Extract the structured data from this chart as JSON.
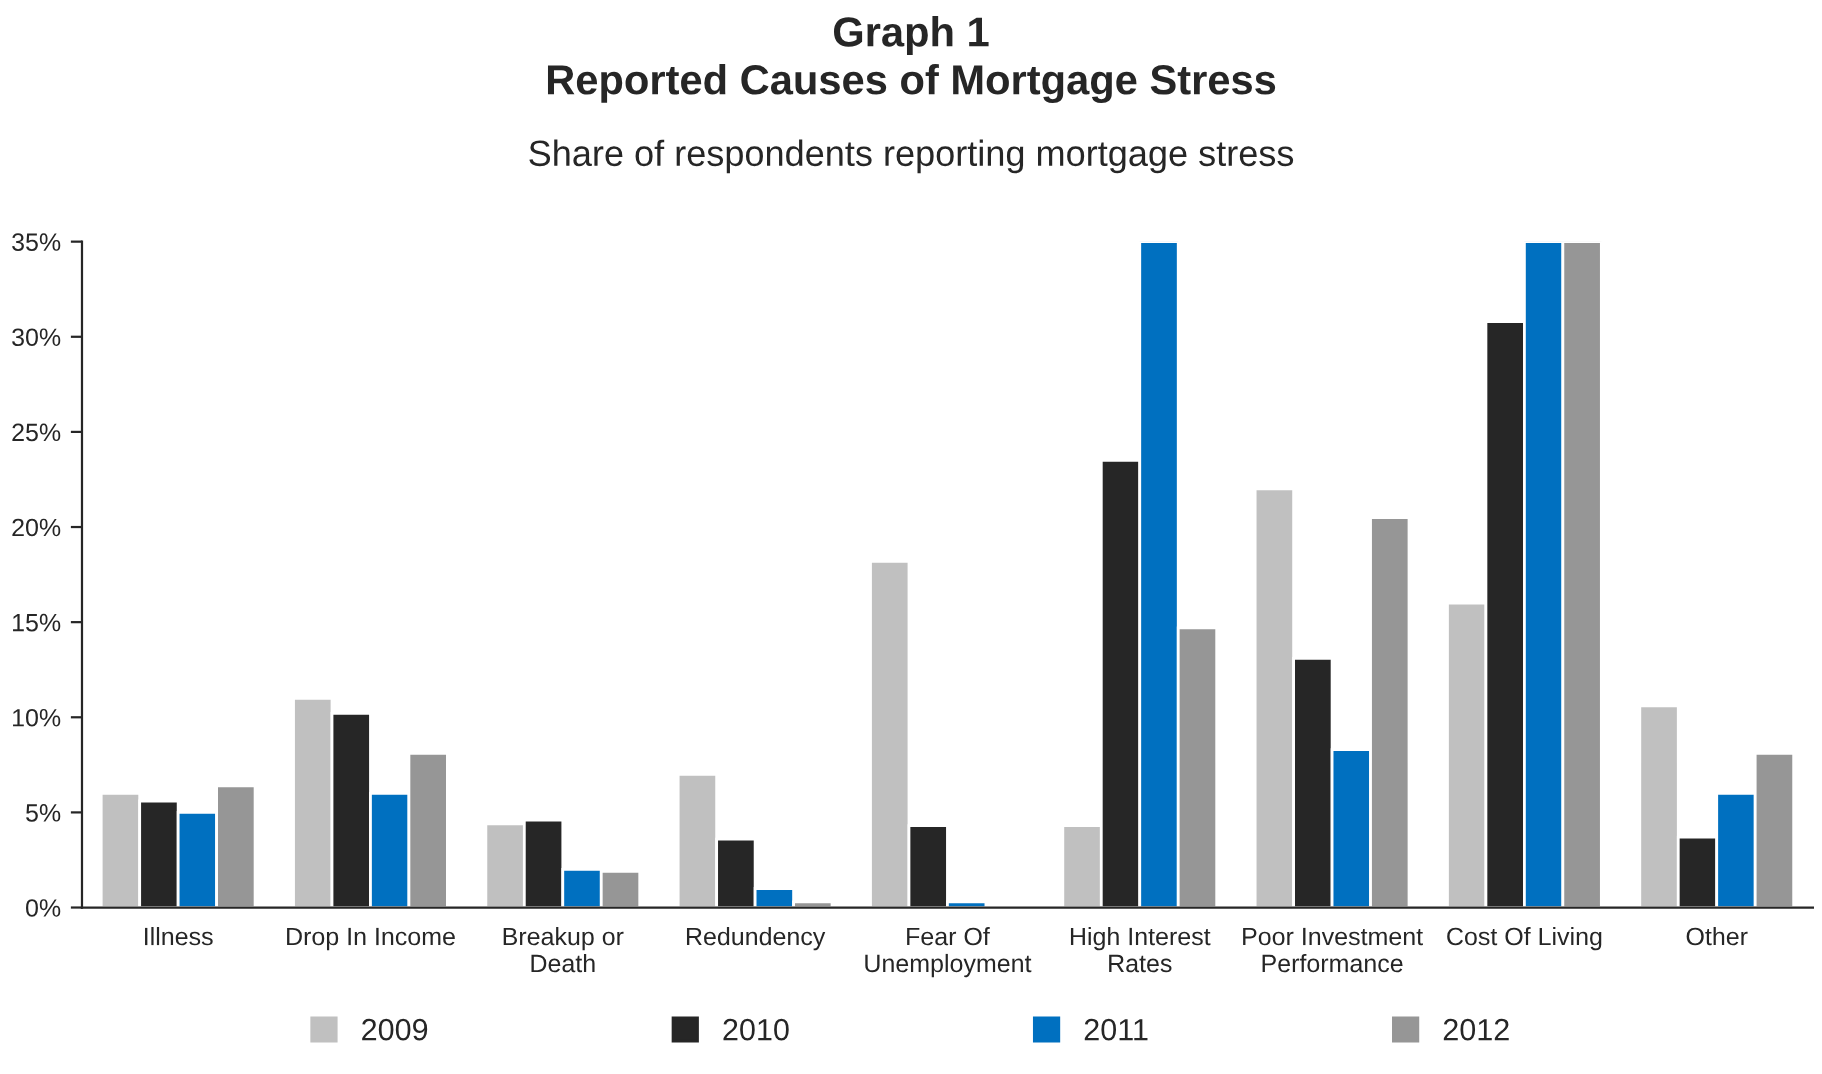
{
  "chart_data": {
    "type": "bar",
    "title": "Graph 1\nReported Causes of Mortgage Stress",
    "subtitle": "Share of respondents reporting mortgage stress",
    "categories": [
      "Illness",
      "Drop In Income",
      "Breakup or\nDeath",
      "Redundency",
      "Fear Of\nUnemployment",
      "High Interest\nRates",
      "Poor Investment\nPerformance",
      "Cost Of Living",
      "Other"
    ],
    "series": [
      {
        "name": "2009",
        "color": "#c0c0c0",
        "values": [
          6.0,
          11.0,
          4.4,
          7.0,
          18.2,
          4.3,
          22.0,
          16.0,
          10.6
        ]
      },
      {
        "name": "2010",
        "color": "#262626",
        "values": [
          5.6,
          10.2,
          4.6,
          3.6,
          4.3,
          23.5,
          13.1,
          30.8,
          3.7
        ]
      },
      {
        "name": "2011",
        "color": "#0070c0",
        "values": [
          5.0,
          6.0,
          2.0,
          1.0,
          0.3,
          35,
          8.3,
          35,
          6.0
        ]
      },
      {
        "name": "2012",
        "color": "#969696",
        "values": [
          6.4,
          8.1,
          1.9,
          0.3,
          null,
          14.7,
          20.5,
          35,
          8.1
        ]
      }
    ],
    "ylim": [
      0,
      35
    ],
    "yticks": [
      {
        "value": 0,
        "label": "0%"
      },
      {
        "value": 5,
        "label": "5%"
      },
      {
        "value": 10,
        "label": "10%"
      },
      {
        "value": 15,
        "label": "15%"
      },
      {
        "value": 20,
        "label": "20%"
      },
      {
        "value": 25,
        "label": "25%"
      },
      {
        "value": 30,
        "label": "30%"
      },
      {
        "value": 35,
        "label": "35%"
      }
    ],
    "grid": false,
    "legend": "bottom"
  }
}
